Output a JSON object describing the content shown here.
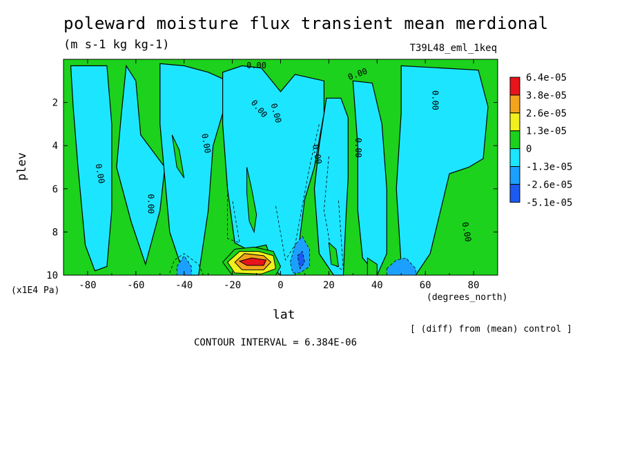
{
  "chart_data": {
    "type": "heatmap",
    "title": "poleward moisture flux transient mean merdional",
    "units": "(m s-1 kg kg-1)",
    "run_label": "T39L48_eml_1keq",
    "xlabel": "lat",
    "x_unit": "(degrees_north)",
    "ylabel": "plev",
    "y_unit": "(x1E4 Pa)",
    "xlim": [
      -90,
      90
    ],
    "ylim": [
      10,
      0
    ],
    "x_ticks": [
      -80,
      -60,
      -40,
      -20,
      0,
      20,
      40,
      60,
      80
    ],
    "x_tick_labels": [
      "-80",
      "-60",
      "-40",
      "-20",
      "0",
      "20",
      "40",
      "60",
      "80"
    ],
    "y_ticks": [
      2,
      4,
      6,
      8,
      10
    ],
    "y_tick_labels": [
      "2",
      "4",
      "6",
      "8",
      "10"
    ],
    "contour_label": "0.00",
    "contour_interval_text": "CONTOUR INTERVAL = 6.384E-06",
    "comparison_note": "[ (diff) from (mean) control ]",
    "legend": {
      "placement": "right",
      "levels": [
        {
          "label": "6.4e-05",
          "value": 6.4e-05,
          "color": "#e8141c"
        },
        {
          "label": "3.8e-05",
          "value": 3.8e-05,
          "color": "#f4a41c"
        },
        {
          "label": "2.6e-05",
          "value": 2.6e-05,
          "color": "#f0f01c"
        },
        {
          "label": "1.3e-05",
          "value": 1.3e-05,
          "color": "#1cd21c"
        },
        {
          "label": "0",
          "value": 0,
          "color": "#1ce6ff"
        },
        {
          "label": "-1.3e-05",
          "value": -1.3e-05,
          "color": "#1ca0ff"
        },
        {
          "label": "-2.6e-05",
          "value": -2.6e-05,
          "color": "#1c5af0"
        },
        {
          "label": "-5.1e-05",
          "value": -5.1e-05,
          "color": null
        }
      ]
    },
    "field_background_color": "#1cd21c",
    "negative_regions": [
      {
        "polygon": [
          [
            -87,
            0.3
          ],
          [
            -86,
            2.2
          ],
          [
            -84,
            5.0
          ],
          [
            -81,
            8.6
          ],
          [
            -77,
            9.8
          ],
          [
            -72,
            9.6
          ],
          [
            -70,
            7.0
          ],
          [
            -70,
            3.0
          ],
          [
            -72,
            0.3
          ]
        ],
        "level": 0
      },
      {
        "polygon": [
          [
            -64,
            0.3
          ],
          [
            -66,
            2.5
          ],
          [
            -68,
            5.0
          ],
          [
            -62,
            7.5
          ],
          [
            -56,
            9.5
          ],
          [
            -50,
            7.0
          ],
          [
            -48,
            5.0
          ],
          [
            -58,
            3.5
          ],
          [
            -60,
            1.0
          ]
        ],
        "level": 0
      },
      {
        "polygon": [
          [
            -50,
            0.2
          ],
          [
            -50,
            3.0
          ],
          [
            -46,
            8.0
          ],
          [
            -40,
            10.0
          ],
          [
            -34,
            10.0
          ],
          [
            -30,
            7.0
          ],
          [
            -28,
            4.0
          ],
          [
            -24,
            2.5
          ],
          [
            -24,
            0.9
          ],
          [
            -30,
            0.6
          ],
          [
            -40,
            0.3
          ]
        ],
        "level": 0
      },
      {
        "polygon": [
          [
            -24,
            0.6
          ],
          [
            -24,
            3.0
          ],
          [
            -22,
            6.0
          ],
          [
            -19,
            8.5
          ],
          [
            -14,
            8.8
          ],
          [
            -6,
            8.6
          ],
          [
            -2,
            9.8
          ],
          [
            0,
            10.0
          ],
          [
            6,
            10.0
          ],
          [
            10,
            6.5
          ],
          [
            14,
            5.0
          ],
          [
            18,
            2.5
          ],
          [
            18,
            1.0
          ],
          [
            6,
            0.7
          ],
          [
            0,
            1.5
          ],
          [
            -8,
            0.4
          ],
          [
            -16,
            0.3
          ]
        ],
        "level": 0
      },
      {
        "polygon": [
          [
            19,
            1.8
          ],
          [
            16,
            4.0
          ],
          [
            14,
            6.0
          ],
          [
            16,
            9.0
          ],
          [
            22,
            10.0
          ],
          [
            26,
            10.0
          ],
          [
            27,
            7.5
          ],
          [
            28,
            5.5
          ],
          [
            28,
            2.7
          ],
          [
            25,
            1.8
          ]
        ],
        "level": 0
      },
      {
        "polygon": [
          [
            30,
            1.0
          ],
          [
            32,
            4.0
          ],
          [
            32,
            7.0
          ],
          [
            34,
            9.2
          ],
          [
            40,
            10.0
          ],
          [
            44,
            9.0
          ],
          [
            44,
            6.0
          ],
          [
            42,
            3.0
          ],
          [
            38,
            1.1
          ]
        ],
        "level": 0
      },
      {
        "polygon": [
          [
            50,
            0.3
          ],
          [
            50,
            2.5
          ],
          [
            48,
            6.0
          ],
          [
            50,
            9.5
          ],
          [
            56,
            10.0
          ],
          [
            62,
            9.0
          ],
          [
            70,
            5.3
          ],
          [
            78,
            5.0
          ],
          [
            84,
            4.6
          ],
          [
            86,
            2.2
          ],
          [
            82,
            0.5
          ],
          [
            66,
            0.4
          ]
        ],
        "level": 0
      },
      {
        "polygon": [
          [
            -43,
            9.6
          ],
          [
            -40,
            9.1
          ],
          [
            -37,
            9.6
          ],
          [
            -37,
            10.0
          ],
          [
            -43,
            10.0
          ]
        ],
        "level": 1
      },
      {
        "polygon": [
          [
            4,
            9.4
          ],
          [
            6,
            8.6
          ],
          [
            9,
            8.2
          ],
          [
            12,
            8.8
          ],
          [
            12,
            9.6
          ],
          [
            8,
            9.9
          ],
          [
            5,
            9.9
          ]
        ],
        "level": 1
      },
      {
        "polygon": [
          [
            7,
            9.1
          ],
          [
            9,
            8.9
          ],
          [
            10,
            9.4
          ],
          [
            8,
            9.7
          ]
        ],
        "level": 2
      },
      {
        "polygon": [
          [
            44,
            9.7
          ],
          [
            48,
            9.3
          ],
          [
            52,
            9.2
          ],
          [
            56,
            9.7
          ],
          [
            56,
            10.0
          ],
          [
            44,
            10.0
          ]
        ],
        "level": 1
      }
    ],
    "positive_maximum": {
      "lat_range": [
        -25,
        0
      ],
      "plev_range": [
        8.7,
        10
      ],
      "nested_levels": [
        {
          "polygon": [
            [
              -24,
              9.4
            ],
            [
              -19,
              8.8
            ],
            [
              -11,
              8.7
            ],
            [
              -3,
              8.9
            ],
            [
              0,
              9.6
            ],
            [
              -2,
              10.0
            ],
            [
              -20,
              10.0
            ]
          ],
          "level": 3
        },
        {
          "polygon": [
            [
              -22,
              9.4
            ],
            [
              -17,
              8.9
            ],
            [
              -9,
              8.9
            ],
            [
              -3,
              9.1
            ],
            [
              -2,
              9.7
            ],
            [
              -8,
              9.95
            ],
            [
              -19,
              9.9
            ]
          ],
          "level": 2
        },
        {
          "polygon": [
            [
              -19,
              9.4
            ],
            [
              -15,
              9.0
            ],
            [
              -7,
              9.1
            ],
            [
              -4,
              9.4
            ],
            [
              -7,
              9.75
            ],
            [
              -16,
              9.75
            ]
          ],
          "level": 1
        },
        {
          "polygon": [
            [
              -17,
              9.35
            ],
            [
              -12,
              9.2
            ],
            [
              -6,
              9.3
            ],
            [
              -7,
              9.55
            ],
            [
              -14,
              9.55
            ]
          ],
          "level": 0
        }
      ]
    },
    "zero_contour_labels": [
      {
        "lat": -10,
        "plev": 0.3,
        "rotation": 0
      },
      {
        "lat": 32,
        "plev": 0.7,
        "rotation": -20
      },
      {
        "lat": -9,
        "plev": 2.3,
        "rotation": 50
      },
      {
        "lat": -2,
        "plev": 2.5,
        "rotation": 75
      },
      {
        "lat": -31,
        "plev": 3.9,
        "rotation": 80
      },
      {
        "lat": -75,
        "plev": 5.3,
        "rotation": 80
      },
      {
        "lat": -54,
        "plev": 6.7,
        "rotation": 90
      },
      {
        "lat": 15,
        "plev": 4.4,
        "rotation": 80
      },
      {
        "lat": 32,
        "plev": 4.1,
        "rotation": 90
      },
      {
        "lat": 64,
        "plev": 1.9,
        "rotation": 90
      },
      {
        "lat": 77,
        "plev": 8.0,
        "rotation": 80
      }
    ]
  }
}
